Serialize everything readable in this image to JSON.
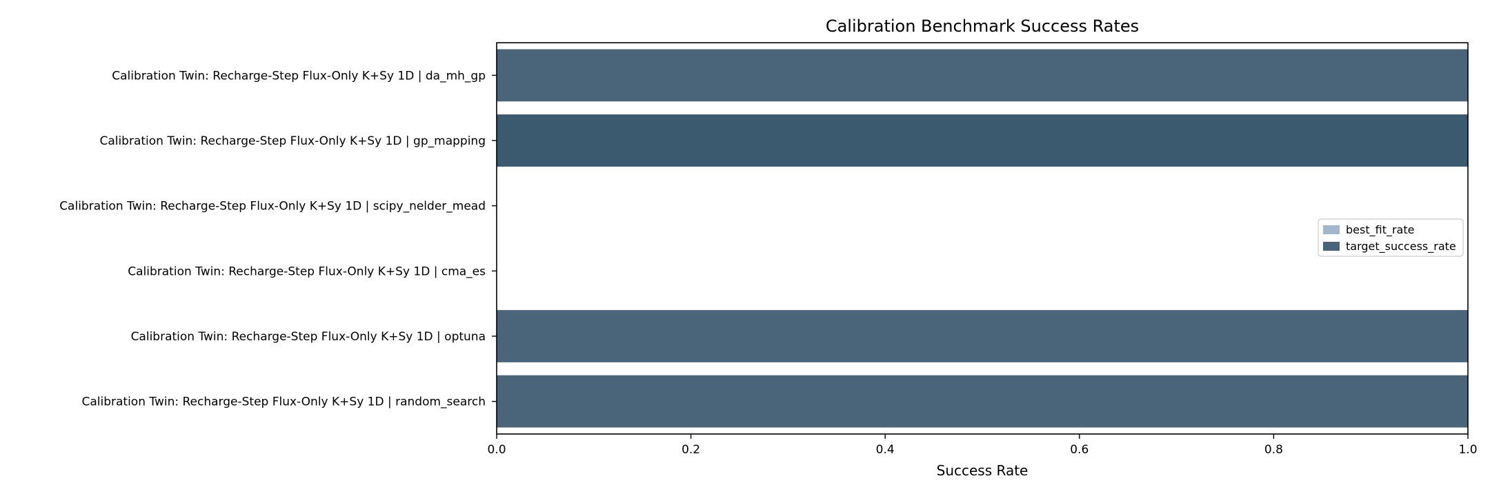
{
  "chart_data": {
    "type": "bar",
    "orientation": "horizontal",
    "title": "Calibration Benchmark Success Rates",
    "xlabel": "Success Rate",
    "ylabel": "",
    "xlim": [
      0.0,
      1.0
    ],
    "xticks": [
      "0.0",
      "0.2",
      "0.4",
      "0.6",
      "0.8",
      "1.0"
    ],
    "grid": false,
    "legend_position": "center-right",
    "categories": [
      "Calibration Twin: Recharge-Step Flux-Only K+Sy 1D | da_mh_gp",
      "Calibration Twin: Recharge-Step Flux-Only K+Sy 1D | gp_mapping",
      "Calibration Twin: Recharge-Step Flux-Only K+Sy 1D | scipy_nelder_mead",
      "Calibration Twin: Recharge-Step Flux-Only K+Sy 1D | cma_es",
      "Calibration Twin: Recharge-Step Flux-Only K+Sy 1D | optuna",
      "Calibration Twin: Recharge-Step Flux-Only K+Sy 1D | random_search"
    ],
    "series": [
      {
        "name": "best_fit_rate",
        "color": "#a3b7cc",
        "values": [
          1.0,
          1.0,
          0.0,
          0.0,
          1.0,
          1.0
        ]
      },
      {
        "name": "target_success_rate",
        "color": "#4a6579",
        "values": [
          1.0,
          1.0,
          0.0,
          0.0,
          1.0,
          1.0
        ]
      }
    ],
    "highlight_color": "#3b5a70",
    "highlight_category_index": 1
  }
}
